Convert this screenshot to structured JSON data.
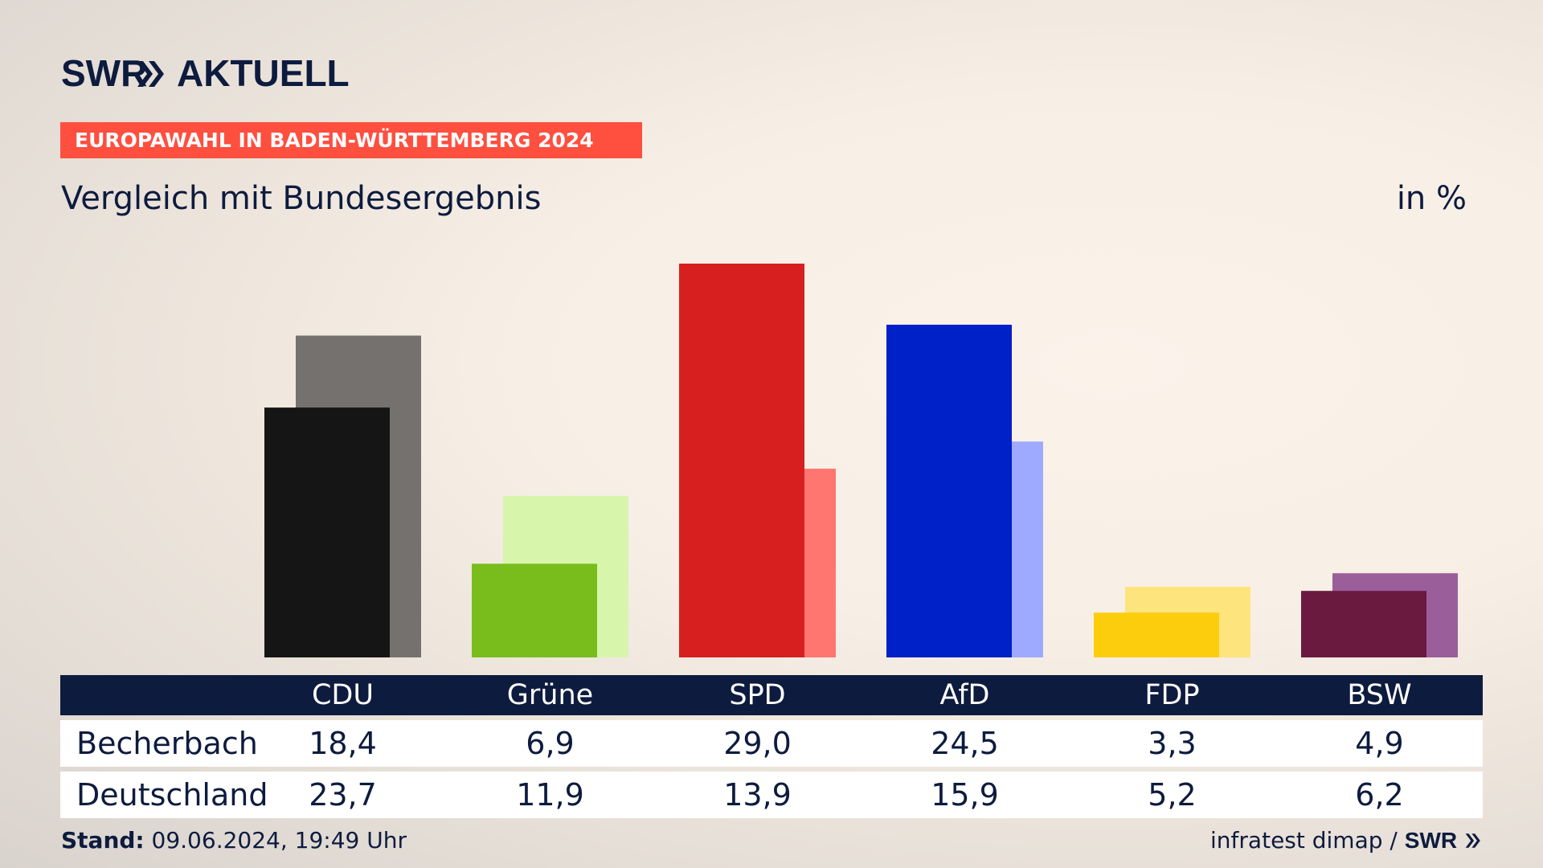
{
  "brand": {
    "logo_part1": "SWR",
    "logo_part2": "AKTUELL",
    "color": "#0d1b3e"
  },
  "banner": {
    "text": "EUROPAWAHL IN BADEN-WÜRTTEMBERG 2024",
    "color": "#ff4f3f"
  },
  "header": {
    "title": "Vergleich mit Bundesergebnis",
    "unit": "in %"
  },
  "table": {
    "rows": [
      {
        "label": "Becherbach",
        "values": [
          "18,4",
          "6,9",
          "29,0",
          "24,5",
          "3,3",
          "4,9"
        ]
      },
      {
        "label": "Deutschland",
        "values": [
          "23,7",
          "11,9",
          "13,9",
          "15,9",
          "5,2",
          "6,2"
        ]
      }
    ]
  },
  "footer": {
    "stand_label": "Stand:",
    "stand_value": "09.06.2024, 19:49 Uhr",
    "source": "infratest dimap /",
    "source_brand": "SWR"
  },
  "chart_data": {
    "type": "bar",
    "categories": [
      "CDU",
      "Grüne",
      "SPD",
      "AfD",
      "FDP",
      "BSW"
    ],
    "series": [
      {
        "name": "Becherbach",
        "values": [
          18.4,
          6.9,
          29.0,
          24.5,
          3.3,
          4.9
        ],
        "colors": [
          "#151515",
          "#78bd1c",
          "#d81f1f",
          "#0020c8",
          "#fccd0c",
          "#6a1a3f"
        ]
      },
      {
        "name": "Deutschland",
        "values": [
          23.7,
          11.9,
          13.9,
          15.9,
          5.2,
          6.2
        ],
        "colors": [
          "#74716e",
          "#d8f5ac",
          "#ff7670",
          "#9eaaff",
          "#fee47c",
          "#9a5e9a"
        ]
      }
    ],
    "ylim": [
      0,
      29.0
    ],
    "grid": false,
    "legend": "table-below"
  }
}
